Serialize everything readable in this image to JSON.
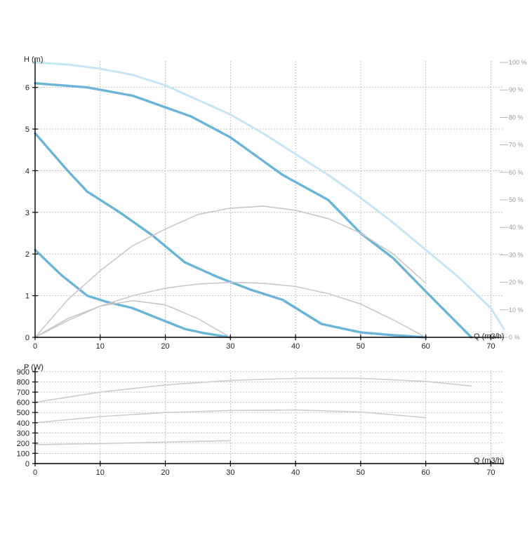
{
  "chart_data": [
    {
      "type": "line",
      "title": "",
      "xlabel": "Q (m3/h)",
      "ylabel": "H (m)",
      "y2label": "",
      "xlim": [
        0,
        72
      ],
      "ylim": [
        0,
        6.6
      ],
      "y2lim": [
        0,
        100
      ],
      "x_ticks": [
        0,
        10,
        20,
        30,
        40,
        50,
        60,
        70
      ],
      "y_ticks": [
        0,
        1,
        2,
        3,
        4,
        5,
        6
      ],
      "y2_ticks": [
        "0 %",
        "10 %",
        "20 %",
        "30 %",
        "40 %",
        "50 %",
        "60 %",
        "70 %",
        "80 %",
        "90 %",
        "100 %"
      ],
      "grid": true,
      "colors": {
        "head": "#6ab4d8",
        "efficiency": "#c8c8c8",
        "limit": "#c4e6f4",
        "axis": "#000000",
        "grid": "#b4b4b4"
      },
      "series": [
        {
          "kind": "head",
          "x": [
            0,
            8,
            15,
            24,
            30,
            38,
            45,
            50,
            55,
            60,
            67
          ],
          "y": [
            6.1,
            6.0,
            5.8,
            5.3,
            4.8,
            3.9,
            3.3,
            2.5,
            1.9,
            1.1,
            0
          ]
        },
        {
          "kind": "head",
          "x": [
            0,
            5,
            8,
            13,
            18,
            23,
            28,
            33,
            38,
            44,
            50,
            55,
            60
          ],
          "y": [
            4.9,
            4.0,
            3.5,
            3.0,
            2.45,
            1.8,
            1.45,
            1.15,
            0.9,
            0.32,
            0.12,
            0.05,
            0
          ]
        },
        {
          "kind": "head",
          "x": [
            0,
            4,
            8,
            11,
            15,
            19,
            23,
            26,
            30
          ],
          "y": [
            2.1,
            1.5,
            1.0,
            0.85,
            0.7,
            0.45,
            0.2,
            0.1,
            0
          ]
        },
        {
          "kind": "efficiency",
          "x": [
            0,
            5,
            10,
            15,
            20,
            25,
            30,
            35,
            40,
            45,
            50,
            55,
            60
          ],
          "y": [
            0,
            0.9,
            1.6,
            2.2,
            2.6,
            2.95,
            3.1,
            3.15,
            3.05,
            2.85,
            2.5,
            2.0,
            1.3
          ]
        },
        {
          "kind": "efficiency",
          "x": [
            0,
            5,
            10,
            15,
            20,
            25,
            30,
            35,
            40,
            45,
            50,
            55,
            60
          ],
          "y": [
            0,
            0.4,
            0.75,
            1.0,
            1.18,
            1.28,
            1.32,
            1.3,
            1.22,
            1.05,
            0.8,
            0.42,
            0
          ]
        },
        {
          "kind": "efficiency",
          "x": [
            0,
            5,
            10,
            15,
            20,
            25,
            30
          ],
          "y": [
            0,
            0.45,
            0.75,
            0.88,
            0.78,
            0.45,
            0
          ]
        },
        {
          "kind": "limit",
          "x": [
            0,
            5,
            10,
            15,
            20,
            25,
            30,
            35,
            40,
            45,
            50,
            55,
            60,
            65,
            70,
            72
          ],
          "y": [
            6.6,
            6.55,
            6.45,
            6.3,
            6.05,
            5.7,
            5.35,
            4.9,
            4.4,
            3.9,
            3.35,
            2.75,
            2.1,
            1.45,
            0.7,
            0.2
          ]
        }
      ]
    },
    {
      "type": "line",
      "title": "",
      "xlabel": "Q (m3/h)",
      "ylabel": "P (W)",
      "xlim": [
        0,
        72
      ],
      "ylim": [
        0,
        900
      ],
      "x_ticks": [
        0,
        10,
        20,
        30,
        40,
        50,
        60,
        70
      ],
      "y_ticks": [
        0,
        100,
        200,
        300,
        400,
        500,
        600,
        700,
        800,
        900
      ],
      "grid": true,
      "colors": {
        "power": "#cdcdcd",
        "axis": "#000000",
        "grid": "#b4b4b4"
      },
      "series": [
        {
          "kind": "power",
          "x": [
            0,
            10,
            20,
            30,
            40,
            50,
            60,
            67
          ],
          "y": [
            600,
            700,
            770,
            815,
            835,
            835,
            805,
            760
          ]
        },
        {
          "kind": "power",
          "x": [
            0,
            10,
            20,
            30,
            40,
            50,
            60
          ],
          "y": [
            400,
            460,
            500,
            520,
            525,
            505,
            450
          ]
        },
        {
          "kind": "power",
          "x": [
            0,
            10,
            20,
            30
          ],
          "y": [
            185,
            195,
            210,
            225
          ]
        }
      ]
    }
  ]
}
